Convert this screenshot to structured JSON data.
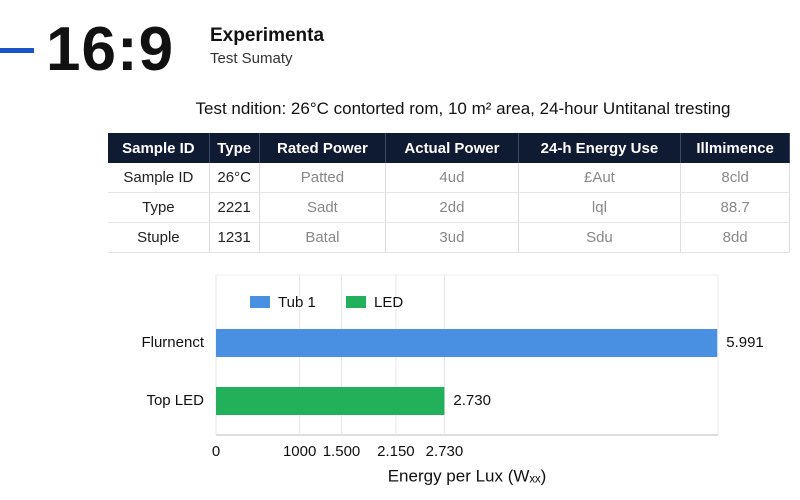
{
  "header": {
    "ratio": "16:9",
    "title": "Experimenta",
    "subtitle": "Test Sumaty"
  },
  "note": "Test ndition: 26°C contorted rom, 10 m² area, 24-hour Untitanal tresting",
  "table": {
    "columns": [
      "Sample ID",
      "Type",
      "Rated Power",
      "Actual Power",
      "24-h Energy Use",
      "Illmimence"
    ],
    "rows": [
      [
        "Sample ID",
        "26°C",
        "Patted",
        "4ud",
        "£Aut",
        "8cld"
      ],
      [
        "Type",
        "2221",
        "Sadt",
        "2dd",
        "lql",
        "88.7"
      ],
      [
        "Stuple",
        "1231",
        "Batal",
        "3ud",
        "Sdu",
        "8dd"
      ]
    ]
  },
  "chart_data": {
    "type": "hbar",
    "categories": [
      "Flurnenct",
      "Top LED"
    ],
    "series": [
      {
        "name": "Tub 1",
        "color": "#4a90e2",
        "values": [
          5991,
          null
        ],
        "value_labels": [
          "5.991",
          null
        ]
      },
      {
        "name": "LED",
        "color": "#22b05a",
        "values": [
          null,
          2730
        ],
        "value_labels": [
          null,
          "2.730"
        ]
      }
    ],
    "xlabel": "Energy per Lux (Wₓₓ)",
    "xlim": [
      0,
      6000
    ],
    "xticks": [
      0,
      1000,
      {
        "value": 1500,
        "label": "1.500"
      },
      {
        "value": 2150,
        "label": "2.150"
      },
      {
        "value": 2730,
        "label": "2.730"
      }
    ],
    "grid": true
  }
}
